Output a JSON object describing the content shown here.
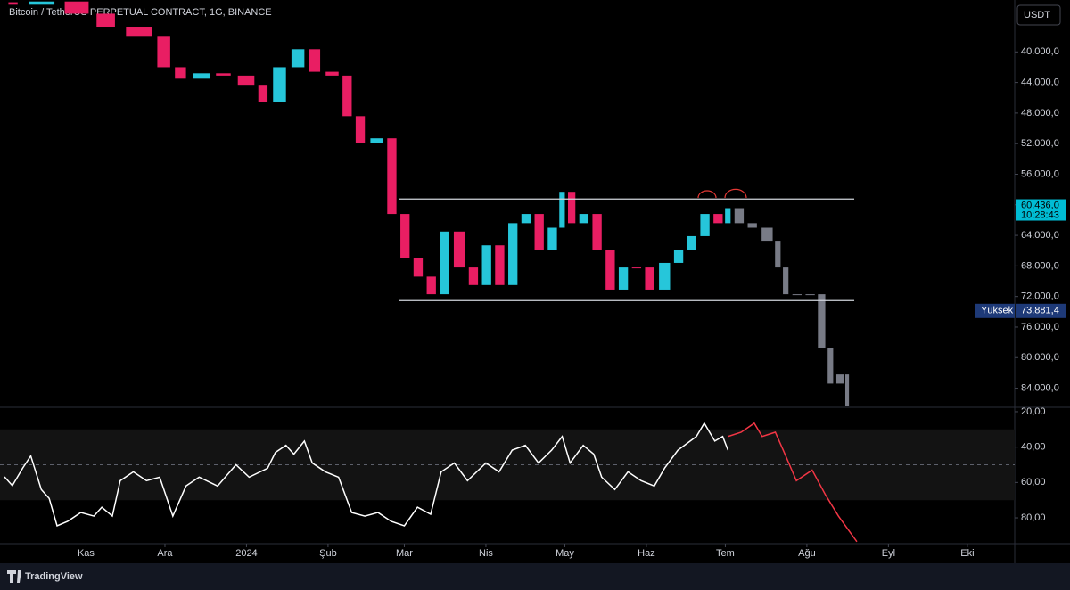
{
  "header": {
    "title": "Bitcoin / TetherUS PERPETUAL CONTRACT, 1G, BINANCE",
    "currency": "USDT"
  },
  "footer": {
    "brand": "TradingView"
  },
  "chart_data": [
    {
      "type": "candlestick",
      "inverted": true,
      "xlim": [
        0,
        384
      ],
      "ylim": [
        33200,
        86500
      ],
      "yticks": [
        {
          "value": 40000,
          "label": "40.000,0"
        },
        {
          "value": 44000,
          "label": "44.000,0"
        },
        {
          "value": 48000,
          "label": "48.000,0"
        },
        {
          "value": 52000,
          "label": "52.000,0"
        },
        {
          "value": 56000,
          "label": "56.000,0"
        },
        {
          "value": 60000,
          "label": "60.000,0"
        },
        {
          "value": 64000,
          "label": "64.000,0"
        },
        {
          "value": 68000,
          "label": "68.000,0"
        },
        {
          "value": 72000,
          "label": "72.000,0"
        },
        {
          "value": 76000,
          "label": "76.000,0"
        },
        {
          "value": 80000,
          "label": "80.000,0"
        },
        {
          "value": 84000,
          "label": "84.000,0"
        }
      ],
      "series": [
        {
          "up_color": "#e91e63",
          "down_color": "#26c6da",
          "x": [
            5,
            19,
            32,
            42,
            56,
            63,
            69,
            78,
            86,
            95,
            100,
            107,
            114,
            120,
            127,
            132,
            137,
            144,
            149,
            154,
            159,
            164,
            169,
            175,
            180,
            185,
            190,
            195,
            200,
            205,
            210,
            213,
            217,
            222,
            227,
            232,
            237,
            242,
            247,
            253,
            258,
            263,
            268,
            273,
            276
          ],
          "open": [
            33500,
            33820,
            33400,
            35000,
            36700,
            37900,
            42000,
            43500,
            42800,
            43100,
            44300,
            46600,
            42000,
            39650,
            42600,
            43100,
            48400,
            51900,
            51300,
            61200,
            67000,
            69400,
            71700,
            63500,
            68200,
            70500,
            65300,
            70500,
            62400,
            61200,
            65900,
            63000,
            58300,
            62400,
            61200,
            65900,
            71100,
            68200,
            68200,
            71100,
            67600,
            65900,
            64100,
            61200,
            62400
          ],
          "close": [
            33820,
            33400,
            35000,
            36700,
            37900,
            42000,
            43500,
            42800,
            43100,
            44300,
            46600,
            42000,
            39650,
            42600,
            43100,
            48400,
            51900,
            51300,
            61200,
            67000,
            69400,
            71700,
            63500,
            68200,
            70500,
            65300,
            70500,
            62400,
            61200,
            65900,
            63000,
            58300,
            62400,
            61200,
            65900,
            71100,
            68200,
            68200,
            71100,
            67600,
            65900,
            64100,
            61200,
            62400,
            60436
          ]
        },
        {
          "color": "#787b86",
          "x": [
            281,
            286,
            292,
            295,
            298,
            303,
            308,
            312,
            315,
            319,
            321
          ],
          "open": [
            60436,
            62400,
            63000,
            64700,
            68200,
            71700,
            71700,
            71700,
            78700,
            83400,
            82200
          ],
          "close": [
            62400,
            63000,
            64700,
            68200,
            71700,
            71700,
            71700,
            78700,
            83400,
            82200,
            86300
          ]
        }
      ],
      "levels": [
        {
          "value": 59240,
          "style": "solid"
        },
        {
          "value": 65900,
          "style": "dashed"
        },
        {
          "value": 72530,
          "style": "solid"
        }
      ],
      "level_x": [
        150,
        323
      ],
      "level_color": "#d1d4dc",
      "last_price": {
        "value": 60436,
        "label": "60.436,0",
        "countdown": "10:28:43",
        "color": "#00bcd4"
      },
      "high_marker": {
        "name": "Yüksek",
        "value": 73881.4,
        "label": "73.881,4",
        "color": "#1e3a78"
      }
    },
    {
      "type": "line",
      "inverted": true,
      "xlim": [
        0,
        384
      ],
      "ylim": [
        17.5,
        94.6
      ],
      "xticks": [
        {
          "value": 31,
          "label": "Kas"
        },
        {
          "value": 61,
          "label": "Ara"
        },
        {
          "value": 92,
          "label": "2024"
        },
        {
          "value": 123,
          "label": "Şub"
        },
        {
          "value": 152,
          "label": "Mar"
        },
        {
          "value": 183,
          "label": "Nis"
        },
        {
          "value": 213,
          "label": "May"
        },
        {
          "value": 244,
          "label": "Haz"
        },
        {
          "value": 274,
          "label": "Tem"
        },
        {
          "value": 305,
          "label": "Ağu"
        },
        {
          "value": 336,
          "label": "Eyl"
        },
        {
          "value": 366,
          "label": "Eki"
        }
      ],
      "yticks": [
        {
          "value": 20,
          "label": "20,00"
        },
        {
          "value": 40,
          "label": "40,00"
        },
        {
          "value": 60,
          "label": "60,00"
        },
        {
          "value": 80,
          "label": "80,00"
        }
      ],
      "band": [
        30,
        70
      ],
      "midline": 50,
      "series": [
        {
          "color": "#ffffff",
          "x": [
            0,
            3,
            7,
            10,
            14,
            17,
            20,
            24,
            29,
            34,
            37,
            41,
            44,
            49,
            54,
            59,
            64,
            69,
            74,
            81,
            88,
            93,
            100,
            103,
            107,
            110,
            114,
            117,
            122,
            127,
            132,
            137,
            142,
            147,
            152,
            157,
            162,
            166,
            171,
            176,
            183,
            188,
            193,
            198,
            203,
            208,
            212,
            215,
            220,
            224,
            227,
            232,
            237,
            242,
            247,
            251,
            256,
            263,
            266,
            270,
            273,
            275
          ],
          "values": [
            56.8,
            61.8,
            51.7,
            45,
            64,
            69,
            84.5,
            82,
            77,
            79,
            74,
            79,
            59,
            54,
            59,
            57,
            79,
            62,
            57,
            62,
            50,
            57,
            52,
            43,
            39,
            44,
            36.6,
            49,
            54,
            57,
            77,
            79,
            77,
            82,
            84.5,
            74,
            78,
            54,
            49,
            59,
            49,
            54,
            41.7,
            39,
            49,
            41.7,
            34,
            49,
            39,
            44,
            57,
            64,
            54,
            59,
            62,
            51.7,
            41.7,
            34,
            26.5,
            36.6,
            34,
            41.7
          ]
        },
        {
          "color": "#f23645",
          "x": [
            275,
            280,
            285,
            288,
            293,
            296,
            301,
            307,
            312,
            317,
            324
          ],
          "values": [
            34,
            31.6,
            26.5,
            34,
            31.6,
            41.7,
            59,
            53,
            66.8,
            79,
            93.5
          ]
        }
      ]
    }
  ]
}
